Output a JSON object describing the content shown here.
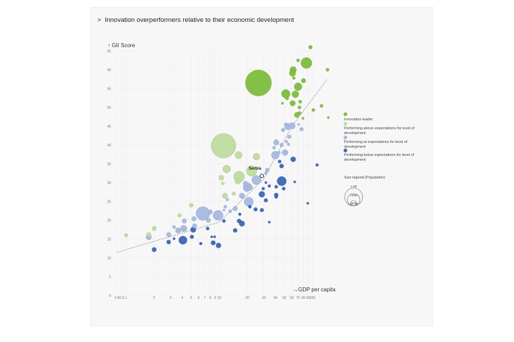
{
  "title": "Innovation overperformers relative to their economic development",
  "title_prefix": ">",
  "chart_data": {
    "type": "scatter",
    "title": "Innovation overperformers relative to their economic development",
    "xlabel": "GDP per capita",
    "ylabel": "GII Score",
    "x_scale": "log",
    "xlim": [
      0.8,
      100
    ],
    "ylim": [
      0,
      65
    ],
    "x_ticks": [
      "0.8",
      "0.9",
      "1",
      "2",
      "3",
      "4",
      "5",
      "6",
      "7",
      "8",
      "9",
      "10",
      "20",
      "30",
      "40",
      "50",
      "60",
      "70",
      "80",
      "90",
      "100"
    ],
    "y_ticks": [
      "0",
      "5",
      "10",
      "15",
      "20",
      "25",
      "30",
      "35",
      "40",
      "45",
      "50",
      "55",
      "60",
      "65"
    ],
    "grid": true,
    "legend_position": "right",
    "categories": {
      "L": {
        "label": "Innovation leader",
        "color": "#7dbd3c"
      },
      "AE": {
        "label": "Performing above expectations for level of development",
        "color": "#bfdb9f"
      },
      "AT": {
        "label": "Performing at expectations for level of development",
        "color": "#a6b8de"
      },
      "BE": {
        "label": "Performing below expectations for level of development",
        "color": "#3b67b2"
      }
    },
    "size_legend": {
      "title": "Size legend (Population)",
      "labels": [
        "1.5B",
        "730M",
        "130M"
      ]
    },
    "annotation": {
      "label": "Serbia",
      "gdp": 28.6,
      "score": 31.8
    },
    "trend_line": [
      [
        0.8,
        11.5
      ],
      [
        10,
        19.5
      ],
      [
        30,
        31
      ],
      [
        60,
        45
      ],
      [
        145,
        57.6
      ]
    ],
    "points": [
      {
        "gdp": 1.0,
        "score": 16.0,
        "pop": 28,
        "cat": "AE"
      },
      {
        "gdp": 1.75,
        "score": 16.2,
        "pop": 42,
        "cat": "AE"
      },
      {
        "gdp": 1.75,
        "score": 15.5,
        "pop": 62,
        "cat": "AT"
      },
      {
        "gdp": 2.0,
        "score": 17.8,
        "pop": 42,
        "cat": "AE"
      },
      {
        "gdp": 2.0,
        "score": 12.2,
        "pop": 42,
        "cat": "BE"
      },
      {
        "gdp": 2.86,
        "score": 16.2,
        "pop": 42,
        "cat": "AT"
      },
      {
        "gdp": 2.86,
        "score": 14.2,
        "pop": 35,
        "cat": "BE"
      },
      {
        "gdp": 3.27,
        "score": 15.1,
        "pop": 11,
        "cat": "BE"
      },
      {
        "gdp": 3.27,
        "score": 18.2,
        "pop": 21,
        "cat": "AT"
      },
      {
        "gdp": 3.62,
        "score": 17.3,
        "pop": 62,
        "cat": "AT"
      },
      {
        "gdp": 4.07,
        "score": 14.7,
        "pop": 140,
        "cat": "BE"
      },
      {
        "gdp": 4.15,
        "score": 17.8,
        "pop": 86,
        "cat": "AT"
      },
      {
        "gdp": 4.21,
        "score": 19.8,
        "pop": 42,
        "cat": "AT"
      },
      {
        "gdp": 3.75,
        "score": 21.3,
        "pop": 28,
        "cat": "AE"
      },
      {
        "gdp": 5.0,
        "score": 24.0,
        "pop": 35,
        "cat": "AE"
      },
      {
        "gdp": 5.08,
        "score": 15.6,
        "pop": 28,
        "cat": "BE"
      },
      {
        "gdp": 5.25,
        "score": 17.5,
        "pop": 62,
        "cat": "BE"
      },
      {
        "gdp": 5.34,
        "score": 20.4,
        "pop": 42,
        "cat": "AT"
      },
      {
        "gdp": 5.43,
        "score": 18.5,
        "pop": 42,
        "cat": "AT"
      },
      {
        "gdp": 6.33,
        "score": 13.8,
        "pop": 16,
        "cat": "BE"
      },
      {
        "gdp": 6.66,
        "score": 21.8,
        "pop": 388,
        "cat": "AT"
      },
      {
        "gdp": 7.62,
        "score": 20.0,
        "pop": 42,
        "cat": "AT"
      },
      {
        "gdp": 8.0,
        "score": 22.2,
        "pop": 42,
        "cat": "AT"
      },
      {
        "gdp": 7.5,
        "score": 17.8,
        "pop": 21,
        "cat": "BE"
      },
      {
        "gdp": 8.3,
        "score": 15.6,
        "pop": 11,
        "cat": "BE"
      },
      {
        "gdp": 8.9,
        "score": 15.6,
        "pop": 11,
        "cat": "BE"
      },
      {
        "gdp": 8.6,
        "score": 14.0,
        "pop": 42,
        "cat": "BE"
      },
      {
        "gdp": 9.7,
        "score": 21.3,
        "pop": 207,
        "cat": "AT"
      },
      {
        "gdp": 9.8,
        "score": 13.3,
        "pop": 53,
        "cat": "BE"
      },
      {
        "gdp": 11.2,
        "score": 19.8,
        "pop": 21,
        "cat": "BE"
      },
      {
        "gdp": 11.1,
        "score": 39.8,
        "pop": 1260,
        "cat": "AE"
      },
      {
        "gdp": 16.1,
        "score": 37.3,
        "pop": 109,
        "cat": "AE"
      },
      {
        "gdp": 12.0,
        "score": 33.6,
        "pop": 126,
        "cat": "AE"
      },
      {
        "gdp": 10.5,
        "score": 31.3,
        "pop": 53,
        "cat": "AE"
      },
      {
        "gdp": 10.9,
        "score": 29.8,
        "pop": 21,
        "cat": "AE"
      },
      {
        "gdp": 11.5,
        "score": 26.5,
        "pop": 62,
        "cat": "AE"
      },
      {
        "gdp": 14.3,
        "score": 27.1,
        "pop": 28,
        "cat": "AE"
      },
      {
        "gdp": 12.2,
        "score": 25.5,
        "pop": 16,
        "cat": "AT"
      },
      {
        "gdp": 11.6,
        "score": 23.6,
        "pop": 21,
        "cat": "AT"
      },
      {
        "gdp": 11.2,
        "score": 22.7,
        "pop": 11,
        "cat": "AT"
      },
      {
        "gdp": 13.1,
        "score": 22.4,
        "pop": 21,
        "cat": "AT"
      },
      {
        "gdp": 14.8,
        "score": 23.1,
        "pop": 42,
        "cat": "AT"
      },
      {
        "gdp": 16.6,
        "score": 21.6,
        "pop": 16,
        "cat": "BE"
      },
      {
        "gdp": 14.8,
        "score": 17.3,
        "pop": 35,
        "cat": "BE"
      },
      {
        "gdp": 17.5,
        "score": 19.1,
        "pop": 62,
        "cat": "BE"
      },
      {
        "gdp": 16.3,
        "score": 19.8,
        "pop": 35,
        "cat": "BE"
      },
      {
        "gdp": 16.3,
        "score": 31.6,
        "pop": 248,
        "cat": "AE"
      },
      {
        "gdp": 15.8,
        "score": 30.4,
        "pop": 72,
        "cat": "AE"
      },
      {
        "gdp": 17.5,
        "score": 26.5,
        "pop": 62,
        "cat": "AT"
      },
      {
        "gdp": 19.7,
        "score": 28.5,
        "pop": 97,
        "cat": "AT"
      },
      {
        "gdp": 95,
        "score": 66.0,
        "pop": 28,
        "cat": "L"
      },
      {
        "gdp": 86,
        "score": 61.8,
        "pop": 248,
        "cat": "L"
      },
      {
        "gdp": 70,
        "score": 62.5,
        "pop": 21,
        "cat": "L"
      },
      {
        "gdp": 145,
        "score": 60.0,
        "pop": 21,
        "cat": "L"
      },
      {
        "gdp": 62,
        "score": 60.0,
        "pop": 86,
        "cat": "L"
      },
      {
        "gdp": 61,
        "score": 59.1,
        "pop": 86,
        "cat": "L"
      },
      {
        "gdp": 63,
        "score": 57.8,
        "pop": 16,
        "cat": "L"
      },
      {
        "gdp": 80,
        "score": 57.1,
        "pop": 42,
        "cat": "L"
      },
      {
        "gdp": 26.3,
        "score": 56.5,
        "pop": 1400,
        "cat": "L"
      },
      {
        "gdp": 70,
        "score": 55.5,
        "pop": 126,
        "cat": "L"
      },
      {
        "gdp": 51.7,
        "score": 53.6,
        "pop": 154,
        "cat": "L"
      },
      {
        "gdp": 65.5,
        "score": 53.5,
        "pop": 97,
        "cat": "L"
      },
      {
        "gdp": 53.4,
        "score": 52.4,
        "pop": 21,
        "cat": "L"
      },
      {
        "gdp": 61.2,
        "score": 51.1,
        "pop": 62,
        "cat": "L"
      },
      {
        "gdp": 73.8,
        "score": 51.5,
        "pop": 21,
        "cat": "L"
      },
      {
        "gdp": 47.5,
        "score": 51.1,
        "pop": 11,
        "cat": "L"
      },
      {
        "gdp": 72.5,
        "score": 50.0,
        "pop": 21,
        "cat": "L"
      },
      {
        "gdp": 102,
        "score": 49.3,
        "pop": 21,
        "cat": "L"
      },
      {
        "gdp": 125,
        "score": 50.4,
        "pop": 21,
        "cat": "L"
      },
      {
        "gdp": 67.8,
        "score": 48.0,
        "pop": 53,
        "cat": "L"
      },
      {
        "gdp": 72.5,
        "score": 48.5,
        "pop": 21,
        "cat": "L"
      },
      {
        "gdp": 79,
        "score": 47.1,
        "pop": 11,
        "cat": "L"
      },
      {
        "gdp": 148,
        "score": 47.3,
        "pop": 11,
        "cat": "L"
      },
      {
        "gdp": 54.4,
        "score": 44.9,
        "pop": 86,
        "cat": "AT"
      },
      {
        "gdp": 60.3,
        "score": 45.1,
        "pop": 86,
        "cat": "AT"
      },
      {
        "gdp": 51.5,
        "score": 45.5,
        "pop": 21,
        "cat": "AT"
      },
      {
        "gdp": 48.3,
        "score": 44.0,
        "pop": 28,
        "cat": "AT"
      },
      {
        "gdp": 71,
        "score": 45.5,
        "pop": 11,
        "cat": "AT"
      },
      {
        "gdp": 76.3,
        "score": 44.2,
        "pop": 28,
        "cat": "AT"
      },
      {
        "gdp": 56.2,
        "score": 42.2,
        "pop": 28,
        "cat": "AT"
      },
      {
        "gdp": 40.8,
        "score": 40.7,
        "pop": 62,
        "cat": "AT"
      },
      {
        "gdp": 52.5,
        "score": 40.9,
        "pop": 16,
        "cat": "AT"
      },
      {
        "gdp": 55.3,
        "score": 40.2,
        "pop": 16,
        "cat": "AT"
      },
      {
        "gdp": 38.7,
        "score": 39.3,
        "pop": 21,
        "cat": "AT"
      },
      {
        "gdp": 46.6,
        "score": 40.0,
        "pop": 28,
        "cat": "AT"
      },
      {
        "gdp": 39.9,
        "score": 37.3,
        "pop": 126,
        "cat": "AT"
      },
      {
        "gdp": 50.7,
        "score": 38.0,
        "pop": 72,
        "cat": "AT"
      },
      {
        "gdp": 43.6,
        "score": 38.0,
        "pop": 21,
        "cat": "AT"
      },
      {
        "gdp": 62,
        "score": 36.2,
        "pop": 53,
        "cat": "BE"
      },
      {
        "gdp": 44.4,
        "score": 35.6,
        "pop": 21,
        "cat": "BE"
      },
      {
        "gdp": 46.6,
        "score": 34.4,
        "pop": 35,
        "cat": "BE"
      },
      {
        "gdp": 112,
        "score": 34.7,
        "pop": 16,
        "cat": "BE"
      },
      {
        "gdp": 25,
        "score": 36.9,
        "pop": 97,
        "cat": "AE"
      },
      {
        "gdp": 22.2,
        "score": 33.1,
        "pop": 230,
        "cat": "AE"
      },
      {
        "gdp": 32.7,
        "score": 33.3,
        "pop": 35,
        "cat": "AT"
      },
      {
        "gdp": 31.6,
        "score": 32.5,
        "pop": 16,
        "cat": "AT"
      },
      {
        "gdp": 25,
        "score": 30.7,
        "pop": 174,
        "cat": "AT"
      },
      {
        "gdp": 20,
        "score": 28.9,
        "pop": 140,
        "cat": "AT"
      },
      {
        "gdp": 21.3,
        "score": 28.7,
        "pop": 62,
        "cat": "AT"
      },
      {
        "gdp": 19,
        "score": 29.8,
        "pop": 42,
        "cat": "AT"
      },
      {
        "gdp": 46.7,
        "score": 30.4,
        "pop": 174,
        "cat": "BE"
      },
      {
        "gdp": 64.4,
        "score": 30.2,
        "pop": 11,
        "cat": "BE"
      },
      {
        "gdp": 40.8,
        "score": 28.9,
        "pop": 21,
        "cat": "BE"
      },
      {
        "gdp": 34.4,
        "score": 29.1,
        "pop": 16,
        "cat": "BE"
      },
      {
        "gdp": 31.6,
        "score": 30.0,
        "pop": 11,
        "cat": "BE"
      },
      {
        "gdp": 49.1,
        "score": 28.4,
        "pop": 21,
        "cat": "BE"
      },
      {
        "gdp": 28.6,
        "score": 26.9,
        "pop": 72,
        "cat": "BE"
      },
      {
        "gdp": 29.6,
        "score": 28.4,
        "pop": 16,
        "cat": "BE"
      },
      {
        "gdp": 40.8,
        "score": 26.7,
        "pop": 35,
        "cat": "BE"
      },
      {
        "gdp": 40.8,
        "score": 26.2,
        "pop": 21,
        "cat": "BE"
      },
      {
        "gdp": 31.6,
        "score": 25.3,
        "pop": 28,
        "cat": "BE"
      },
      {
        "gdp": 20.7,
        "score": 24.9,
        "pop": 174,
        "cat": "AT"
      },
      {
        "gdp": 21.3,
        "score": 23.6,
        "pop": 21,
        "cat": "BE"
      },
      {
        "gdp": 24.5,
        "score": 22.9,
        "pop": 28,
        "cat": "BE"
      },
      {
        "gdp": 28.6,
        "score": 22.7,
        "pop": 28,
        "cat": "BE"
      },
      {
        "gdp": 34.4,
        "score": 19.5,
        "pop": 11,
        "cat": "BE"
      },
      {
        "gdp": 89,
        "score": 24.5,
        "pop": 11,
        "cat": "BE"
      }
    ]
  }
}
